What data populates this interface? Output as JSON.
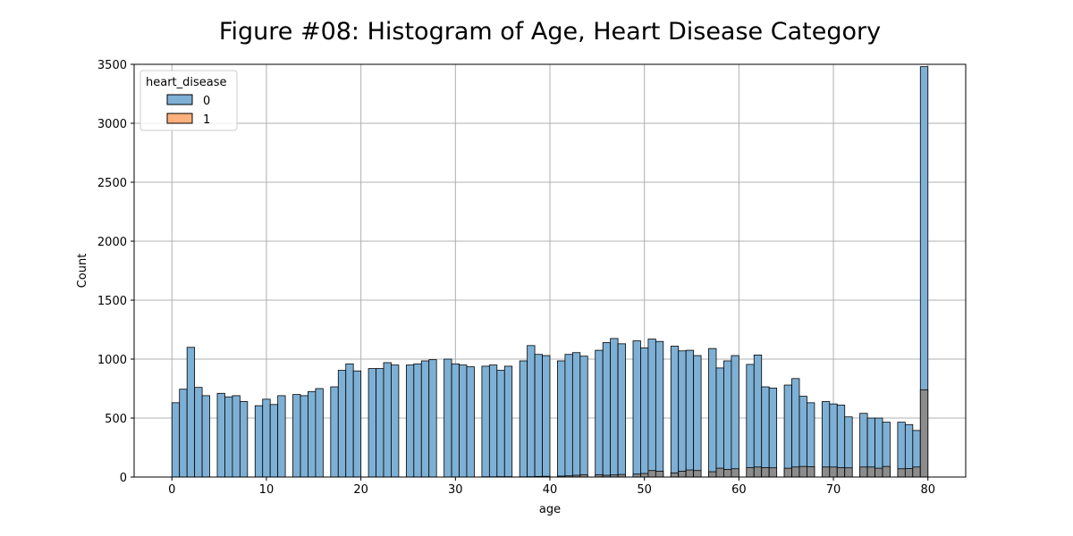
{
  "chart_data": {
    "type": "bar",
    "title": "Figure #08: Histogram of Age, Heart Disease Category",
    "xlabel": "age",
    "ylabel": "Count",
    "xlim": [
      -4.0,
      84.0
    ],
    "ylim": [
      0,
      3500
    ],
    "xticks": [
      0,
      10,
      20,
      30,
      40,
      50,
      60,
      70,
      80
    ],
    "yticks": [
      0,
      500,
      1000,
      1500,
      2000,
      2500,
      3000,
      3500
    ],
    "grid": true,
    "legend": {
      "title": "heart_disease",
      "position": "top-left",
      "entries": [
        {
          "label": "0",
          "color": "#7eb0d5"
        },
        {
          "label": "1",
          "color": "#ffb07c"
        }
      ]
    },
    "overlap_color": "#8c8c8c",
    "bin_width": 0.8,
    "series": [
      {
        "name": "0",
        "color": "#7eb0d5",
        "bins": [
          [
            0.0,
            630
          ],
          [
            0.8,
            745
          ],
          [
            1.6,
            1100
          ],
          [
            2.4,
            760
          ],
          [
            3.2,
            690
          ],
          [
            4.8,
            710
          ],
          [
            5.6,
            680
          ],
          [
            6.4,
            690
          ],
          [
            7.2,
            640
          ],
          [
            8.8,
            605
          ],
          [
            9.6,
            660
          ],
          [
            10.4,
            615
          ],
          [
            11.2,
            690
          ],
          [
            12.8,
            700
          ],
          [
            13.6,
            690
          ],
          [
            14.4,
            725
          ],
          [
            15.2,
            750
          ],
          [
            16.8,
            765
          ],
          [
            17.6,
            905
          ],
          [
            18.4,
            960
          ],
          [
            19.2,
            900
          ],
          [
            20.8,
            920
          ],
          [
            21.6,
            920
          ],
          [
            22.4,
            970
          ],
          [
            23.2,
            950
          ],
          [
            24.8,
            950
          ],
          [
            25.6,
            960
          ],
          [
            26.4,
            985
          ],
          [
            27.2,
            995
          ],
          [
            28.8,
            1000
          ],
          [
            29.6,
            960
          ],
          [
            30.4,
            950
          ],
          [
            31.2,
            935
          ],
          [
            32.8,
            940
          ],
          [
            33.6,
            950
          ],
          [
            34.4,
            905
          ],
          [
            35.2,
            940
          ],
          [
            36.8,
            985
          ],
          [
            37.6,
            1115
          ],
          [
            38.4,
            1040
          ],
          [
            39.2,
            1030
          ],
          [
            40.8,
            985
          ],
          [
            41.6,
            1040
          ],
          [
            42.4,
            1055
          ],
          [
            43.2,
            1025
          ],
          [
            44.8,
            1075
          ],
          [
            45.6,
            1140
          ],
          [
            46.4,
            1175
          ],
          [
            47.2,
            1130
          ],
          [
            48.8,
            1155
          ],
          [
            49.6,
            1095
          ],
          [
            50.4,
            1170
          ],
          [
            51.2,
            1150
          ],
          [
            52.8,
            1110
          ],
          [
            53.6,
            1070
          ],
          [
            54.4,
            1075
          ],
          [
            55.2,
            1030
          ],
          [
            56.8,
            1090
          ],
          [
            57.6,
            925
          ],
          [
            58.4,
            985
          ],
          [
            59.2,
            1030
          ],
          [
            60.8,
            955
          ],
          [
            61.6,
            1035
          ],
          [
            62.4,
            765
          ],
          [
            63.2,
            755
          ],
          [
            64.8,
            780
          ],
          [
            65.6,
            835
          ],
          [
            66.4,
            685
          ],
          [
            67.2,
            630
          ],
          [
            68.8,
            640
          ],
          [
            69.6,
            620
          ],
          [
            70.4,
            610
          ],
          [
            71.2,
            510
          ],
          [
            72.8,
            540
          ],
          [
            73.6,
            500
          ],
          [
            74.4,
            500
          ],
          [
            75.2,
            465
          ],
          [
            76.8,
            465
          ],
          [
            77.6,
            445
          ],
          [
            78.4,
            395
          ],
          [
            79.2,
            3480
          ]
        ]
      },
      {
        "name": "1",
        "color": "#ffb07c",
        "bins": [
          [
            0.0,
            0
          ],
          [
            0.8,
            0
          ],
          [
            1.6,
            0
          ],
          [
            2.4,
            0
          ],
          [
            3.2,
            0
          ],
          [
            4.8,
            0
          ],
          [
            5.6,
            0
          ],
          [
            6.4,
            0
          ],
          [
            7.2,
            0
          ],
          [
            8.8,
            0
          ],
          [
            9.6,
            0
          ],
          [
            10.4,
            0
          ],
          [
            11.2,
            0
          ],
          [
            12.8,
            0
          ],
          [
            13.6,
            0
          ],
          [
            14.4,
            0
          ],
          [
            15.2,
            0
          ],
          [
            16.8,
            0
          ],
          [
            17.6,
            0
          ],
          [
            18.4,
            0
          ],
          [
            19.2,
            0
          ],
          [
            20.8,
            0
          ],
          [
            21.6,
            0
          ],
          [
            22.4,
            0
          ],
          [
            23.2,
            0
          ],
          [
            24.8,
            0
          ],
          [
            25.6,
            0
          ],
          [
            26.4,
            0
          ],
          [
            27.2,
            0
          ],
          [
            28.8,
            0
          ],
          [
            29.6,
            0
          ],
          [
            30.4,
            0
          ],
          [
            31.2,
            0
          ],
          [
            32.8,
            2
          ],
          [
            33.6,
            2
          ],
          [
            34.4,
            3
          ],
          [
            35.2,
            3
          ],
          [
            36.8,
            2
          ],
          [
            37.6,
            3
          ],
          [
            38.4,
            5
          ],
          [
            39.2,
            6
          ],
          [
            40.8,
            8
          ],
          [
            41.6,
            10
          ],
          [
            42.4,
            15
          ],
          [
            43.2,
            20
          ],
          [
            44.8,
            20
          ],
          [
            45.6,
            15
          ],
          [
            46.4,
            18
          ],
          [
            47.2,
            22
          ],
          [
            48.8,
            25
          ],
          [
            49.6,
            30
          ],
          [
            50.4,
            55
          ],
          [
            51.2,
            50
          ],
          [
            52.8,
            35
          ],
          [
            53.6,
            50
          ],
          [
            54.4,
            60
          ],
          [
            55.2,
            55
          ],
          [
            56.8,
            45
          ],
          [
            57.6,
            75
          ],
          [
            58.4,
            65
          ],
          [
            59.2,
            70
          ],
          [
            60.8,
            80
          ],
          [
            61.6,
            85
          ],
          [
            62.4,
            80
          ],
          [
            63.2,
            78
          ],
          [
            64.8,
            75
          ],
          [
            65.6,
            85
          ],
          [
            66.4,
            90
          ],
          [
            67.2,
            88
          ],
          [
            68.8,
            85
          ],
          [
            69.6,
            85
          ],
          [
            70.4,
            80
          ],
          [
            71.2,
            78
          ],
          [
            72.8,
            85
          ],
          [
            73.6,
            85
          ],
          [
            74.4,
            75
          ],
          [
            75.2,
            90
          ],
          [
            76.8,
            70
          ],
          [
            77.6,
            72
          ],
          [
            78.4,
            85
          ],
          [
            79.2,
            740
          ]
        ]
      }
    ]
  }
}
